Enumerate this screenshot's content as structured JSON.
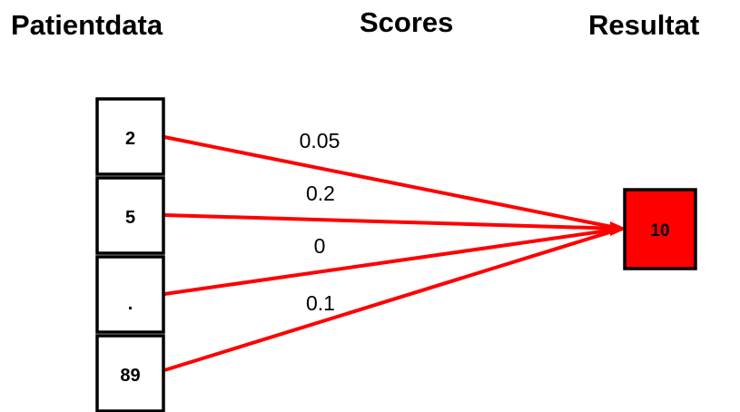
{
  "headings": {
    "input": "Patientdata",
    "weights": "Scores",
    "output": "Resultat"
  },
  "inputs": [
    "2",
    "5",
    ".",
    "89"
  ],
  "weights": [
    "0.05",
    "0.2",
    "0",
    "0.1"
  ],
  "output": "10",
  "colors": {
    "connector": "#ff0000",
    "output_fill": "#ff0000",
    "box_border": "#000000"
  }
}
